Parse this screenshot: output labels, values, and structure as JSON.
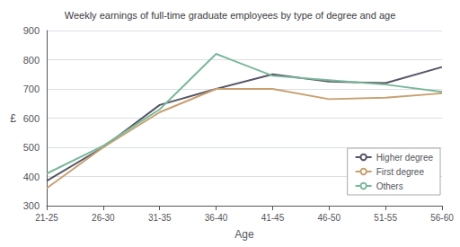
{
  "chart_data": {
    "type": "line",
    "title": "Weekly earnings of full-time graduate employees by type of degree and age",
    "xlabel": "Age",
    "ylabel": "£",
    "categories": [
      "21-25",
      "26-30",
      "31-35",
      "36-40",
      "41-45",
      "46-50",
      "51-55",
      "56-60"
    ],
    "series": [
      {
        "name": "Higher degree",
        "color": "#555566",
        "values": [
          385,
          500,
          645,
          700,
          750,
          725,
          720,
          775
        ]
      },
      {
        "name": "First degree",
        "color": "#c8a070",
        "values": [
          360,
          500,
          620,
          700,
          700,
          665,
          670,
          685
        ]
      },
      {
        "name": "Others",
        "color": "#7ab89a",
        "values": [
          410,
          505,
          630,
          820,
          745,
          730,
          715,
          690
        ]
      }
    ],
    "ylim": [
      300,
      900
    ],
    "yticks": [
      300,
      400,
      500,
      600,
      700,
      800,
      900
    ],
    "grid": true,
    "legend": "lower right"
  }
}
